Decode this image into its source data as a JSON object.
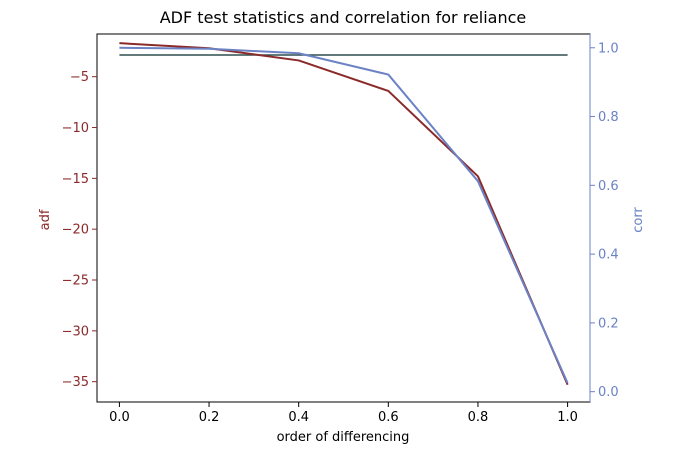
{
  "chart_data": {
    "type": "line",
    "title": "ADF test statistics and correlation for reliance",
    "xlabel": "order of differencing",
    "ylabel_left": "adf",
    "ylabel_right": "corr",
    "x": [
      0.0,
      0.2,
      0.4,
      0.6,
      0.8,
      1.0
    ],
    "xlim": [
      -0.05,
      1.05
    ],
    "x_ticks": [
      0.0,
      0.2,
      0.4,
      0.6,
      0.8,
      1.0
    ],
    "x_tick_labels": [
      "0.0",
      "0.2",
      "0.4",
      "0.6",
      "0.8",
      "1.0"
    ],
    "ylim_left": [
      -37.0,
      -0.8
    ],
    "ylim_right": [
      -0.03,
      1.04
    ],
    "y_ticks_left": [
      -5,
      -10,
      -15,
      -20,
      -25,
      -30,
      -35
    ],
    "y_tick_labels_left": [
      "−5",
      "−10",
      "−15",
      "−20",
      "−25",
      "−30",
      "−35"
    ],
    "y_ticks_right": [
      0.0,
      0.2,
      0.4,
      0.6,
      0.8,
      1.0
    ],
    "y_tick_labels_right": [
      "0.0",
      "0.2",
      "0.4",
      "0.6",
      "0.8",
      "1.0"
    ],
    "series": [
      {
        "axis": "left",
        "color": "#8b2a2a",
        "values": [
          -1.7,
          -2.2,
          -3.4,
          -6.4,
          -14.8,
          -35.3
        ]
      },
      {
        "axis": "right",
        "color": "#6b82c4",
        "values": [
          1.0,
          0.997,
          0.984,
          0.922,
          0.612,
          0.025
        ]
      }
    ],
    "hline": {
      "axis": "left",
      "value": -2.86,
      "color": "#2f4f4f",
      "x_range": [
        0.0,
        1.0
      ]
    },
    "left_axis_color": "#8b2a2a",
    "right_axis_color": "#6b82c4"
  }
}
